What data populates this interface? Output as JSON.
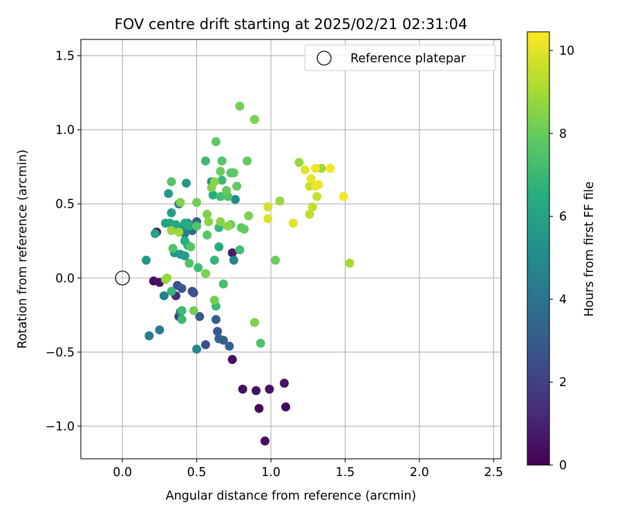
{
  "chart_data": {
    "type": "scatter",
    "title": "FOV centre drift starting at 2025/02/21 02:31:04",
    "xlabel": "Angular distance from reference (arcmin)",
    "ylabel": "Rotation from reference (arcmin)",
    "xlim": [
      -0.28,
      2.55
    ],
    "ylim": [
      -1.22,
      1.61
    ],
    "xticks": [
      0.0,
      0.5,
      1.0,
      1.5,
      2.0,
      2.5
    ],
    "xtick_labels": [
      "0.0",
      "0.5",
      "1.0",
      "1.5",
      "2.0",
      "2.5"
    ],
    "yticks": [
      -1.0,
      -0.5,
      0.0,
      0.5,
      1.0,
      1.5
    ],
    "ytick_labels": [
      "−1.0",
      "−0.5",
      "0.0",
      "0.5",
      "1.0",
      "1.5"
    ],
    "grid": true,
    "legend": {
      "label": "Reference platepar",
      "placement": "top-right"
    },
    "reference_point": {
      "x": 0.0,
      "y": 0.0
    },
    "colorbar": {
      "label": "Hours from first FF file",
      "colormap": "viridis",
      "range": [
        0,
        10.45
      ],
      "ticks": [
        0,
        2,
        4,
        6,
        8,
        10
      ],
      "tick_labels": [
        "0",
        "2",
        "4",
        "6",
        "8",
        "10"
      ]
    },
    "points": [
      {
        "x": 0.21,
        "y": -0.02,
        "h": 0.3
      },
      {
        "x": 0.25,
        "y": -0.03,
        "h": 0.5
      },
      {
        "x": 0.23,
        "y": 0.31,
        "h": 0.6
      },
      {
        "x": 0.74,
        "y": -0.55,
        "h": 0.4
      },
      {
        "x": 0.81,
        "y": -0.75,
        "h": 0.4
      },
      {
        "x": 0.9,
        "y": -0.76,
        "h": 0.5
      },
      {
        "x": 0.92,
        "y": -0.88,
        "h": 0.2
      },
      {
        "x": 0.99,
        "y": -0.75,
        "h": 0.5
      },
      {
        "x": 1.09,
        "y": -0.71,
        "h": 0.6
      },
      {
        "x": 1.1,
        "y": -0.87,
        "h": 0.3
      },
      {
        "x": 0.96,
        "y": -1.1,
        "h": 0.4
      },
      {
        "x": 0.74,
        "y": 0.17,
        "h": 0.8
      },
      {
        "x": 0.36,
        "y": -0.12,
        "h": 1.3
      },
      {
        "x": 0.38,
        "y": -0.26,
        "h": 2.0
      },
      {
        "x": 0.37,
        "y": -0.05,
        "h": 2.5
      },
      {
        "x": 0.4,
        "y": -0.07,
        "h": 3.0
      },
      {
        "x": 0.47,
        "y": -0.09,
        "h": 2.2
      },
      {
        "x": 0.48,
        "y": -0.1,
        "h": 2.6
      },
      {
        "x": 0.52,
        "y": -0.26,
        "h": 3.0
      },
      {
        "x": 0.56,
        "y": -0.45,
        "h": 2.7
      },
      {
        "x": 0.63,
        "y": -0.28,
        "h": 3.1
      },
      {
        "x": 0.64,
        "y": -0.36,
        "h": 2.9
      },
      {
        "x": 0.65,
        "y": -0.41,
        "h": 3.3
      },
      {
        "x": 0.68,
        "y": -0.42,
        "h": 3.2
      },
      {
        "x": 0.72,
        "y": -0.46,
        "h": 3.3
      },
      {
        "x": 0.5,
        "y": 0.38,
        "h": 3.4
      },
      {
        "x": 0.47,
        "y": 0.32,
        "h": 3.6
      },
      {
        "x": 0.38,
        "y": 0.5,
        "h": 3.9
      },
      {
        "x": 0.39,
        "y": -0.23,
        "h": 3.8
      },
      {
        "x": 0.18,
        "y": -0.39,
        "h": 4.3
      },
      {
        "x": 0.25,
        "y": -0.35,
        "h": 4.4
      },
      {
        "x": 0.28,
        "y": -0.12,
        "h": 4.6
      },
      {
        "x": 0.5,
        "y": -0.48,
        "h": 4.8
      },
      {
        "x": 0.75,
        "y": 0.12,
        "h": 4.8
      },
      {
        "x": 0.42,
        "y": 0.3,
        "h": 4.3
      },
      {
        "x": 0.44,
        "y": 0.37,
        "h": 4.6
      },
      {
        "x": 0.41,
        "y": 0.34,
        "h": 5.0
      },
      {
        "x": 0.76,
        "y": 0.53,
        "h": 4.9
      },
      {
        "x": 0.6,
        "y": 0.65,
        "h": 5.3
      },
      {
        "x": 0.16,
        "y": 0.12,
        "h": 5.5
      },
      {
        "x": 0.31,
        "y": 0.57,
        "h": 5.7
      },
      {
        "x": 0.43,
        "y": 0.64,
        "h": 5.6
      },
      {
        "x": 0.33,
        "y": 0.44,
        "h": 5.8
      },
      {
        "x": 0.35,
        "y": 0.17,
        "h": 5.4
      },
      {
        "x": 0.39,
        "y": 0.16,
        "h": 5.6
      },
      {
        "x": 0.42,
        "y": 0.15,
        "h": 5.7
      },
      {
        "x": 0.22,
        "y": 0.3,
        "h": 5.9
      },
      {
        "x": 0.29,
        "y": 0.37,
        "h": 6.0
      },
      {
        "x": 0.32,
        "y": 0.37,
        "h": 6.1
      },
      {
        "x": 0.36,
        "y": 0.36,
        "h": 6.2
      },
      {
        "x": 0.42,
        "y": 0.37,
        "h": 6.3
      },
      {
        "x": 0.45,
        "y": 0.35,
        "h": 6.4
      },
      {
        "x": 0.42,
        "y": 0.25,
        "h": 6.5
      },
      {
        "x": 0.38,
        "y": 0.31,
        "h": 6.2
      },
      {
        "x": 0.44,
        "y": 0.22,
        "h": 6.6
      },
      {
        "x": 0.61,
        "y": 0.56,
        "h": 6.4
      },
      {
        "x": 0.65,
        "y": 0.21,
        "h": 6.5
      },
      {
        "x": 0.62,
        "y": 0.12,
        "h": 6.8
      },
      {
        "x": 0.65,
        "y": 0.34,
        "h": 6.9
      },
      {
        "x": 0.67,
        "y": 0.66,
        "h": 7.0
      },
      {
        "x": 0.33,
        "y": -0.09,
        "h": 6.9
      },
      {
        "x": 0.4,
        "y": -0.22,
        "h": 7.0
      },
      {
        "x": 0.4,
        "y": -0.28,
        "h": 7.0
      },
      {
        "x": 0.51,
        "y": 0.07,
        "h": 7.1
      },
      {
        "x": 0.56,
        "y": 0.79,
        "h": 7.1
      },
      {
        "x": 0.63,
        "y": -0.19,
        "h": 7.0
      },
      {
        "x": 0.66,
        "y": 0.55,
        "h": 7.2
      },
      {
        "x": 0.79,
        "y": 0.19,
        "h": 7.2
      },
      {
        "x": 0.68,
        "y": -0.04,
        "h": 7.3
      },
      {
        "x": 0.67,
        "y": 0.79,
        "h": 7.6
      },
      {
        "x": 0.71,
        "y": 0.55,
        "h": 7.6
      },
      {
        "x": 0.73,
        "y": 0.71,
        "h": 7.6
      },
      {
        "x": 0.93,
        "y": -0.44,
        "h": 7.5
      },
      {
        "x": 0.33,
        "y": 0.65,
        "h": 7.6
      },
      {
        "x": 0.34,
        "y": 0.2,
        "h": 7.5
      },
      {
        "x": 0.45,
        "y": 0.1,
        "h": 7.5
      },
      {
        "x": 0.5,
        "y": 0.35,
        "h": 7.6
      },
      {
        "x": 0.57,
        "y": 0.29,
        "h": 7.7
      },
      {
        "x": 0.46,
        "y": 0.21,
        "h": 7.7
      },
      {
        "x": 0.75,
        "y": 0.71,
        "h": 7.8
      },
      {
        "x": 0.77,
        "y": 0.62,
        "h": 7.9
      },
      {
        "x": 0.8,
        "y": 0.34,
        "h": 7.8
      },
      {
        "x": 0.82,
        "y": 0.33,
        "h": 7.9
      },
      {
        "x": 0.63,
        "y": 0.92,
        "h": 7.8
      },
      {
        "x": 0.66,
        "y": 0.72,
        "h": 8.0
      },
      {
        "x": 0.7,
        "y": 0.59,
        "h": 8.0
      },
      {
        "x": 0.73,
        "y": 0.36,
        "h": 8.0
      },
      {
        "x": 0.84,
        "y": 0.79,
        "h": 7.9
      },
      {
        "x": 1.03,
        "y": 0.12,
        "h": 8.0
      },
      {
        "x": 0.79,
        "y": 1.16,
        "h": 8.2
      },
      {
        "x": 0.89,
        "y": 1.07,
        "h": 8.3
      },
      {
        "x": 0.5,
        "y": 0.51,
        "h": 8.1
      },
      {
        "x": 0.56,
        "y": 0.03,
        "h": 8.3
      },
      {
        "x": 0.48,
        "y": -0.22,
        "h": 8.2
      },
      {
        "x": 0.62,
        "y": -0.15,
        "h": 8.2
      },
      {
        "x": 0.85,
        "y": 0.42,
        "h": 8.3
      },
      {
        "x": 0.89,
        "y": -0.3,
        "h": 8.4
      },
      {
        "x": 0.39,
        "y": 0.51,
        "h": 8.4
      },
      {
        "x": 0.57,
        "y": 0.43,
        "h": 8.4
      },
      {
        "x": 0.58,
        "y": 0.38,
        "h": 8.6
      },
      {
        "x": 0.6,
        "y": 0.61,
        "h": 8.4
      },
      {
        "x": 0.62,
        "y": 0.65,
        "h": 8.6
      },
      {
        "x": 0.66,
        "y": 0.38,
        "h": 8.5
      },
      {
        "x": 0.71,
        "y": 0.35,
        "h": 8.6
      },
      {
        "x": 0.29,
        "y": -0.01,
        "h": 8.7
      },
      {
        "x": 0.3,
        "y": 0.0,
        "h": 8.8
      },
      {
        "x": 0.33,
        "y": 0.32,
        "h": 8.8
      },
      {
        "x": 0.38,
        "y": 0.31,
        "h": 8.9
      },
      {
        "x": 1.06,
        "y": 0.52,
        "h": 8.8
      },
      {
        "x": 1.19,
        "y": 0.78,
        "h": 8.8
      },
      {
        "x": 1.34,
        "y": 0.74,
        "h": 8.9
      },
      {
        "x": 1.53,
        "y": 0.1,
        "h": 9.0
      },
      {
        "x": 1.26,
        "y": 0.43,
        "h": 9.4
      },
      {
        "x": 1.26,
        "y": 0.62,
        "h": 9.5
      },
      {
        "x": 1.28,
        "y": 0.48,
        "h": 9.5
      },
      {
        "x": 1.31,
        "y": 0.55,
        "h": 9.6
      },
      {
        "x": 0.98,
        "y": 0.48,
        "h": 9.8
      },
      {
        "x": 0.98,
        "y": 0.4,
        "h": 9.9
      },
      {
        "x": 1.15,
        "y": 0.37,
        "h": 10.0
      },
      {
        "x": 1.23,
        "y": 0.73,
        "h": 10.0
      },
      {
        "x": 1.27,
        "y": 0.67,
        "h": 10.1
      },
      {
        "x": 1.3,
        "y": 0.62,
        "h": 10.1
      },
      {
        "x": 1.32,
        "y": 0.63,
        "h": 10.2
      },
      {
        "x": 1.3,
        "y": 0.74,
        "h": 10.2
      },
      {
        "x": 1.4,
        "y": 0.74,
        "h": 10.3
      },
      {
        "x": 1.49,
        "y": 0.55,
        "h": 10.3
      }
    ]
  }
}
